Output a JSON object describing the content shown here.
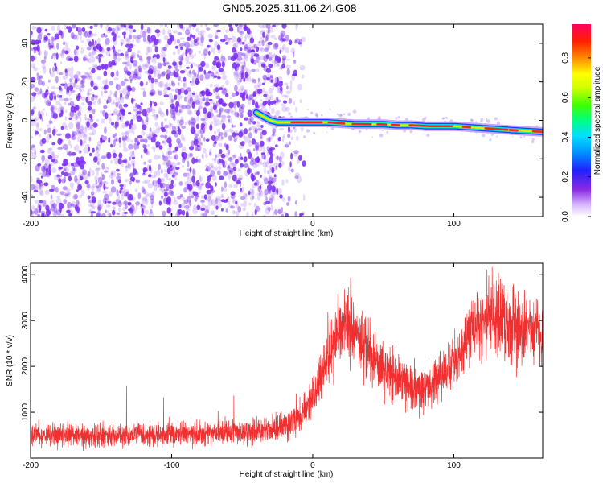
{
  "title": "GN05.2025.311.06.24.G08",
  "colors": {
    "snr_line": "#f03030",
    "scatter": "#7a2cf0",
    "trace_edge": "#1e3cff"
  },
  "chart_data": [
    {
      "type": "heatmap",
      "name": "spectrogram",
      "xlabel": "Height of straight line (km)",
      "ylabel": "Frequency (Hz)",
      "xlim": [
        -200,
        163
      ],
      "ylim": [
        -50,
        50
      ],
      "xticks": [
        -200,
        -100,
        0,
        100
      ],
      "yticks": [
        -40,
        -20,
        0,
        20,
        40
      ],
      "noise_region_x": [
        -200,
        -20
      ],
      "trace": {
        "x": [
          -40,
          -35,
          -30,
          -25,
          -20,
          -10,
          0,
          10,
          20,
          30,
          40,
          50,
          60,
          70,
          80,
          90,
          100,
          110,
          120,
          130,
          140,
          150,
          163
        ],
        "y": [
          4,
          2,
          0,
          -1,
          -1,
          -1,
          -1,
          -1,
          -1.5,
          -2,
          -2,
          -2,
          -2.5,
          -2.5,
          -3,
          -3,
          -3,
          -3.5,
          -4,
          -4.5,
          -5,
          -5.5,
          -6
        ]
      },
      "colorbar": {
        "label": "Normalized spectral amplitude",
        "range": [
          0,
          0.97
        ],
        "ticks": [
          0.0,
          0.2,
          0.4,
          0.6,
          0.8
        ]
      }
    },
    {
      "type": "line",
      "name": "snr",
      "xlabel": "Height of straight line (km)",
      "ylabel": "SNR (10 * v/v)",
      "xlim": [
        -200,
        163
      ],
      "ylim": [
        0,
        4250
      ],
      "xticks": [
        -200,
        -100,
        0,
        100
      ],
      "yticks": [
        1000,
        2000,
        3000,
        4000
      ],
      "trend": {
        "x": [
          -200,
          -150,
          -100,
          -50,
          -25,
          -10,
          0,
          10,
          20,
          25,
          35,
          50,
          70,
          80,
          100,
          115,
          125,
          140,
          163
        ],
        "y": [
          500,
          500,
          520,
          560,
          650,
          850,
          1300,
          2100,
          2800,
          2950,
          2500,
          1900,
          1600,
          1500,
          2100,
          2800,
          3200,
          2900,
          2700
        ]
      }
    }
  ]
}
